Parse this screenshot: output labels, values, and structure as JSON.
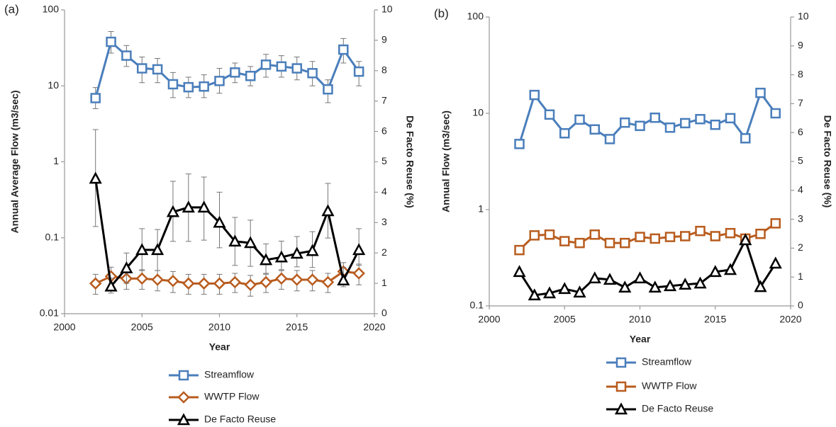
{
  "chart_data": [
    {
      "type": "line",
      "panel_label": "(a)",
      "x_label": "Year",
      "y_label": "Annual Average Flow (m3/sec)",
      "y2_label": "De Facto Reuse (%)",
      "ylog": true,
      "xlim": [
        2000,
        2020
      ],
      "xticks": [
        2000,
        2005,
        2010,
        2015,
        2020
      ],
      "ylim": [
        0.01,
        100
      ],
      "yticks": [
        0.01,
        0.1,
        1,
        10,
        100
      ],
      "y2lim": [
        0,
        10
      ],
      "y2ticks": [
        0,
        1,
        2,
        3,
        4,
        5,
        6,
        7,
        8,
        9,
        10
      ],
      "x": [
        2002,
        2003,
        2004,
        2005,
        2006,
        2007,
        2008,
        2009,
        2010,
        2011,
        2012,
        2013,
        2014,
        2015,
        2016,
        2017,
        2018,
        2019
      ],
      "series": [
        {
          "name": "Streamflow",
          "color": "#4a7ebb",
          "marker": "square",
          "values": [
            6.9,
            38,
            25,
            17,
            16.5,
            10.5,
            9.6,
            9.8,
            11.6,
            15,
            13.5,
            19,
            18,
            17,
            14.7,
            9,
            30,
            15.4
          ],
          "error_low": [
            5,
            27,
            18,
            11,
            11,
            7,
            7,
            7,
            8,
            11,
            10,
            13,
            13,
            12,
            10,
            6,
            20,
            10
          ],
          "error_high": [
            9.5,
            52,
            34,
            24,
            23,
            15,
            13,
            14,
            17,
            20,
            18,
            26,
            25,
            24,
            21,
            12,
            42,
            21
          ]
        },
        {
          "name": "WWTP Flow",
          "color": "#b85c1e",
          "marker": "diamond",
          "values": [
            0.025,
            0.031,
            0.029,
            0.029,
            0.028,
            0.027,
            0.025,
            0.025,
            0.025,
            0.026,
            0.024,
            0.026,
            0.029,
            0.028,
            0.028,
            0.026,
            0.036,
            0.034
          ],
          "error_low": [
            0.018,
            0.022,
            0.021,
            0.021,
            0.02,
            0.019,
            0.018,
            0.018,
            0.018,
            0.019,
            0.017,
            0.019,
            0.021,
            0.02,
            0.02,
            0.019,
            0.026,
            0.024
          ],
          "error_high": [
            0.033,
            0.041,
            0.038,
            0.038,
            0.037,
            0.036,
            0.033,
            0.033,
            0.033,
            0.034,
            0.032,
            0.034,
            0.038,
            0.037,
            0.037,
            0.034,
            0.047,
            0.045
          ]
        },
        {
          "name": "De Facto Reuse",
          "color": "#000000",
          "marker": "triangle",
          "axis": "y2",
          "values": [
            4.45,
            0.9,
            1.5,
            2.1,
            2.1,
            3.35,
            3.5,
            3.5,
            3.0,
            2.38,
            2.33,
            1.77,
            1.86,
            1.98,
            2.07,
            3.38,
            1.1,
            2.1
          ],
          "error_low": [
            2.87,
            0.68,
            1.0,
            1.42,
            1.42,
            2.38,
            2.38,
            2.42,
            2.17,
            1.59,
            1.56,
            1.3,
            1.42,
            1.54,
            1.52,
            2.49,
            0.89,
            1.59
          ],
          "error_high": [
            6.06,
            1.17,
            2.0,
            2.8,
            2.77,
            4.36,
            4.6,
            4.5,
            4.0,
            3.17,
            3.08,
            2.3,
            2.39,
            2.54,
            2.7,
            4.29,
            1.52,
            2.8
          ]
        }
      ]
    },
    {
      "type": "line",
      "panel_label": "(b)",
      "x_label": "Year",
      "y_label": "Annual Flow (m3/sec)",
      "y2_label": "De Facto Reuse (%)",
      "ylog": true,
      "xlim": [
        2000,
        2020
      ],
      "xticks": [
        2000,
        2005,
        2010,
        2015,
        2020
      ],
      "ylim": [
        0.1,
        100
      ],
      "yticks": [
        0.1,
        1,
        10,
        100
      ],
      "y2lim": [
        0,
        10
      ],
      "y2ticks": [
        0,
        1,
        2,
        3,
        4,
        5,
        6,
        7,
        8,
        9,
        10
      ],
      "x": [
        2002,
        2003,
        2004,
        2005,
        2006,
        2007,
        2008,
        2009,
        2010,
        2011,
        2012,
        2013,
        2014,
        2015,
        2016,
        2017,
        2018,
        2019
      ],
      "series": [
        {
          "name": "Streamflow",
          "color": "#4a7ebb",
          "marker": "square",
          "values": [
            4.8,
            15.5,
            9.7,
            6.2,
            8.6,
            6.8,
            5.4,
            8.0,
            7.4,
            9.0,
            7.1,
            7.9,
            8.7,
            7.6,
            8.9,
            5.5,
            16.3,
            10
          ]
        },
        {
          "name": "WWTP Flow",
          "color": "#b85c1e",
          "marker": "square",
          "values": [
            0.38,
            0.54,
            0.55,
            0.47,
            0.45,
            0.55,
            0.45,
            0.45,
            0.52,
            0.5,
            0.52,
            0.53,
            0.6,
            0.53,
            0.57,
            0.5,
            0.56,
            0.72
          ]
        },
        {
          "name": "De Facto Reuse",
          "color": "#000000",
          "marker": "triangle",
          "axis": "y2",
          "values": [
            1.18,
            0.37,
            0.44,
            0.59,
            0.47,
            0.96,
            0.91,
            0.64,
            0.96,
            0.64,
            0.69,
            0.74,
            0.78,
            1.18,
            1.25,
            2.28,
            0.66,
            1.47
          ]
        }
      ]
    }
  ]
}
